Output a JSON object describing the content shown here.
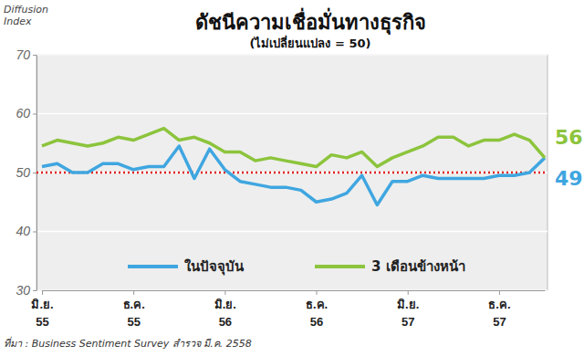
{
  "chart_data": {
    "type": "line",
    "title": "ดัชนีความเชื่อมั่นทางธุรกิจ",
    "subtitle": "(ไม่เปลี่ยนแปลง = 50)",
    "y_label": "Diffusion Index",
    "source": "ที่มา : Business Sentiment Survey สำรวจ มี.ค. 2558",
    "categories": [
      "มิ.ย. 55",
      null,
      null,
      null,
      null,
      null,
      "ธ.ค. 55",
      null,
      null,
      null,
      null,
      null,
      "มิ.ย. 56",
      null,
      null,
      null,
      null,
      null,
      "ธ.ค. 56",
      null,
      null,
      null,
      null,
      null,
      "มิ.ย. 57",
      null,
      null,
      null,
      null,
      null,
      "ธ.ค. 57",
      null,
      null,
      null
    ],
    "series": [
      {
        "name": "ในปัจจุบัน",
        "color": "#3fa6e0",
        "values": [
          51,
          51.5,
          50,
          50,
          51.5,
          51.5,
          50.5,
          51,
          51,
          54.5,
          49,
          54,
          50.5,
          48.5,
          48,
          47.5,
          47.5,
          47,
          45,
          45.5,
          46.5,
          49.5,
          44.5,
          48.5,
          48.5,
          49.5,
          49,
          49,
          49,
          49,
          49.5,
          49.5,
          50,
          52.5
        ]
      },
      {
        "name": "3 เดือนข้างหน้า",
        "color": "#8cc43c",
        "values": [
          54.5,
          55.5,
          55,
          54.5,
          55,
          56,
          55.5,
          56.5,
          57.5,
          55.5,
          56,
          55,
          53.5,
          53.5,
          52,
          52.5,
          52,
          51.5,
          51,
          53,
          52.5,
          53.5,
          51,
          52.5,
          53.5,
          54.5,
          56,
          56,
          54.5,
          55.5,
          55.5,
          56.5,
          55.5,
          52.5
        ]
      }
    ],
    "reference_lines": [
      {
        "value": 50,
        "color": "#e0201c",
        "line_style": "dotted"
      }
    ],
    "annotations": [
      {
        "text": "56",
        "y": 56,
        "color": "#8cc43c"
      },
      {
        "text": "49",
        "y": 49,
        "color": "#3fa6e0"
      }
    ],
    "ylim": [
      30,
      70
    ],
    "yticks": [
      30,
      40,
      50,
      60,
      70
    ],
    "grid": true,
    "legend": "bottom"
  }
}
